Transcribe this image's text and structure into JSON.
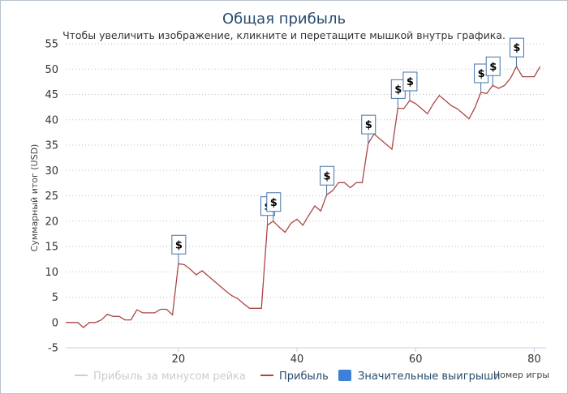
{
  "chart_data": {
    "type": "line",
    "title": "Общая прибыль",
    "subtitle": "Чтобы увеличить изображение, кликните и перетащите мышкой внутрь графика.",
    "ylabel": "Суммарный итог (USD)",
    "xlabel": "Номер игры",
    "xlim": [
      1,
      82
    ],
    "ylim": [
      -5,
      55
    ],
    "xticks": [
      20,
      40,
      60,
      80
    ],
    "yticks": [
      -5,
      0,
      5,
      10,
      15,
      20,
      25,
      30,
      35,
      40,
      45,
      50,
      55
    ],
    "grid": true,
    "legend_position": "bottom",
    "series": [
      {
        "name": "Прибыль за минусом рейка",
        "color": "#cccccc",
        "visible": false,
        "values": []
      },
      {
        "name": "Прибыль",
        "color": "#aa4643",
        "visible": true,
        "values": [
          [
            1,
            0
          ],
          [
            2,
            0
          ],
          [
            3,
            0
          ],
          [
            4,
            -1
          ],
          [
            5,
            0
          ],
          [
            6,
            0
          ],
          [
            7,
            0.5
          ],
          [
            8,
            1.6
          ],
          [
            9,
            1.2
          ],
          [
            10,
            1.2
          ],
          [
            11,
            0.5
          ],
          [
            12,
            0.5
          ],
          [
            13,
            2.5
          ],
          [
            14,
            1.9
          ],
          [
            15,
            1.9
          ],
          [
            16,
            1.9
          ],
          [
            17,
            2.6
          ],
          [
            18,
            2.6
          ],
          [
            19,
            1.5
          ],
          [
            20,
            11.6
          ],
          [
            21,
            11.4
          ],
          [
            22,
            10.5
          ],
          [
            23,
            9.4
          ],
          [
            24,
            10.2
          ],
          [
            25,
            9.2
          ],
          [
            26,
            8.2
          ],
          [
            27,
            7.2
          ],
          [
            28,
            6.2
          ],
          [
            29,
            5.3
          ],
          [
            30,
            4.7
          ],
          [
            31,
            3.7
          ],
          [
            32,
            2.8
          ],
          [
            33,
            2.8
          ],
          [
            34,
            2.8
          ],
          [
            35,
            19.2
          ],
          [
            36,
            20
          ],
          [
            37,
            18.8
          ],
          [
            38,
            17.8
          ],
          [
            39,
            19.6
          ],
          [
            40,
            20.4
          ],
          [
            41,
            19.2
          ],
          [
            42,
            21.2
          ],
          [
            43,
            23
          ],
          [
            44,
            22
          ],
          [
            45,
            25.2
          ],
          [
            46,
            26
          ],
          [
            47,
            27.6
          ],
          [
            48,
            27.6
          ],
          [
            49,
            26.6
          ],
          [
            50,
            27.6
          ],
          [
            51,
            27.6
          ],
          [
            52,
            35.3
          ],
          [
            53,
            37.2
          ],
          [
            54,
            36.2
          ],
          [
            55,
            35.2
          ],
          [
            56,
            34.2
          ],
          [
            57,
            42.3
          ],
          [
            58,
            42.2
          ],
          [
            59,
            43.8
          ],
          [
            60,
            43.2
          ],
          [
            61,
            42.2
          ],
          [
            62,
            41.2
          ],
          [
            63,
            43.2
          ],
          [
            64,
            44.8
          ],
          [
            65,
            43.8
          ],
          [
            66,
            42.8
          ],
          [
            67,
            42.2
          ],
          [
            68,
            41.2
          ],
          [
            69,
            40.2
          ],
          [
            70,
            42.4
          ],
          [
            71,
            45.4
          ],
          [
            72,
            45.2
          ],
          [
            73,
            46.8
          ],
          [
            74,
            46.2
          ],
          [
            75,
            46.8
          ],
          [
            76,
            48.2
          ],
          [
            77,
            50.5
          ],
          [
            78,
            48.5
          ],
          [
            79,
            48.5
          ],
          [
            80,
            48.5
          ],
          [
            81,
            50.5
          ]
        ]
      }
    ],
    "flags": {
      "name": "Значительные выигрыши",
      "color": "#4572a7",
      "legend_color": "#3d7fd9",
      "label": "$",
      "points": [
        [
          20,
          11.6
        ],
        [
          35,
          19.2
        ],
        [
          36,
          20
        ],
        [
          45,
          25.2
        ],
        [
          52,
          35.3
        ],
        [
          57,
          42.3
        ],
        [
          59,
          43.8
        ],
        [
          71,
          45.4
        ],
        [
          73,
          46.8
        ],
        [
          77,
          50.5
        ]
      ]
    }
  }
}
